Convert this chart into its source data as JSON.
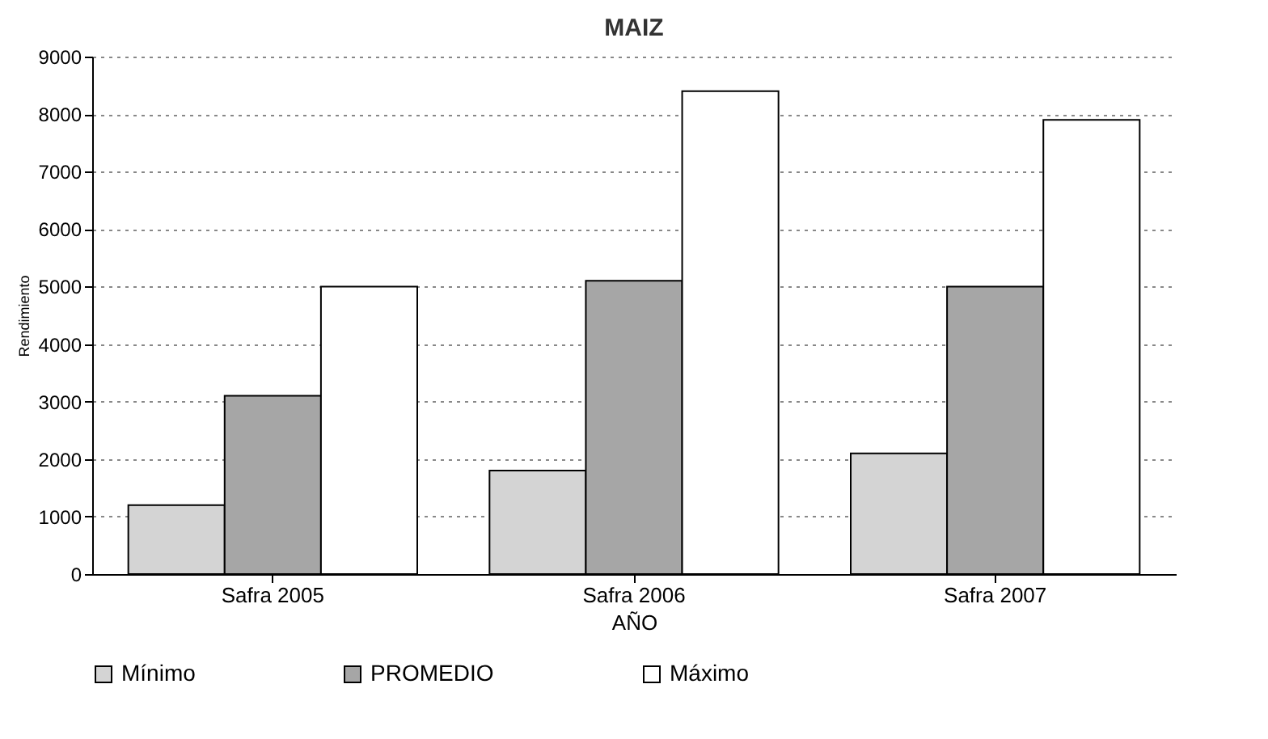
{
  "chart_data": {
    "type": "bar",
    "title": "MAIZ",
    "xlabel": "AÑO",
    "ylabel": "Rendimiento",
    "categories": [
      "Safra 2005",
      "Safra 2006",
      "Safra 2007"
    ],
    "series": [
      {
        "name": "Mínimo",
        "color": "#d4d4d4",
        "values": [
          1200,
          1800,
          2100
        ]
      },
      {
        "name": "PROMEDIO",
        "color": "#a6a6a6",
        "values": [
          3100,
          5100,
          5000
        ]
      },
      {
        "name": "Máximo",
        "color": "#ffffff",
        "values": [
          5000,
          8400,
          7900
        ]
      }
    ],
    "ylim": [
      0,
      9000
    ],
    "yticks": [
      0,
      1000,
      2000,
      3000,
      4000,
      5000,
      6000,
      7000,
      8000,
      9000
    ],
    "grid": "y",
    "legend": "bottom"
  }
}
